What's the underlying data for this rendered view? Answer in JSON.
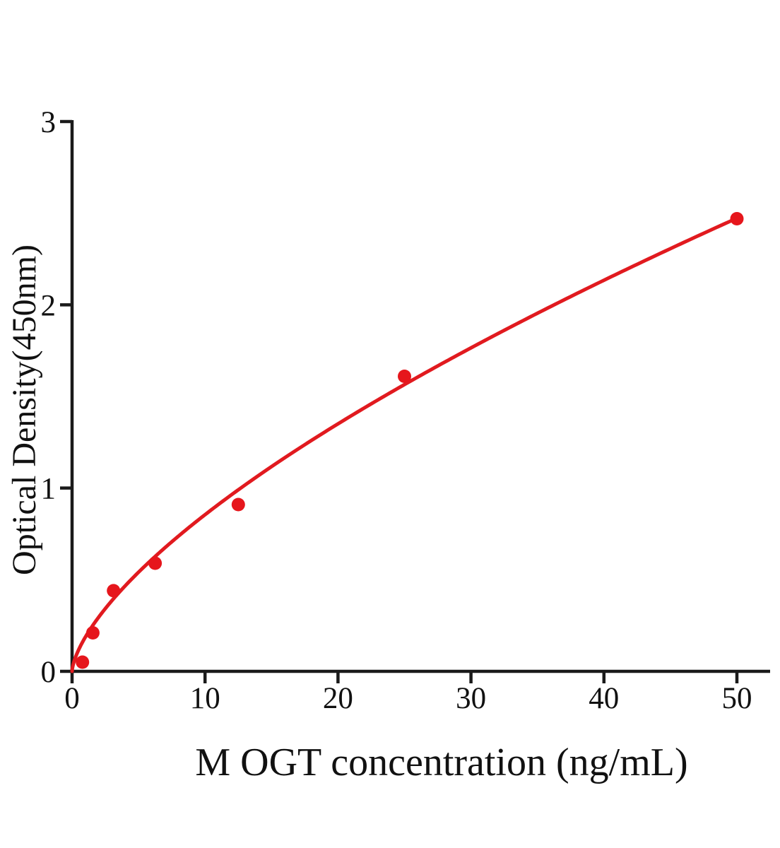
{
  "chart_data": {
    "type": "scatter",
    "xlabel": "M OGT concentration (ng/mL)",
    "ylabel": "Optical Density(450nm)",
    "x_ticks": [
      0,
      10,
      20,
      30,
      40,
      50
    ],
    "y_ticks": [
      0,
      1,
      2,
      3
    ],
    "xlim": [
      0,
      52.5
    ],
    "ylim": [
      0,
      3
    ],
    "grid": false,
    "legend": "none",
    "points": [
      {
        "x": 0.78,
        "y": 0.05
      },
      {
        "x": 1.56,
        "y": 0.21
      },
      {
        "x": 3.12,
        "y": 0.44
      },
      {
        "x": 6.25,
        "y": 0.59
      },
      {
        "x": 12.5,
        "y": 0.91
      },
      {
        "x": 25,
        "y": 1.61
      },
      {
        "x": 50,
        "y": 2.47
      }
    ],
    "trendline": {
      "type": "power",
      "a": 0.187,
      "b": 0.66,
      "x_start": 0,
      "x_end": 50
    },
    "colors": {
      "curve": "#e11a1f",
      "point": "#e6161c",
      "axis": "#1a1a1a",
      "text": "#111111",
      "background": "#ffffff"
    }
  }
}
